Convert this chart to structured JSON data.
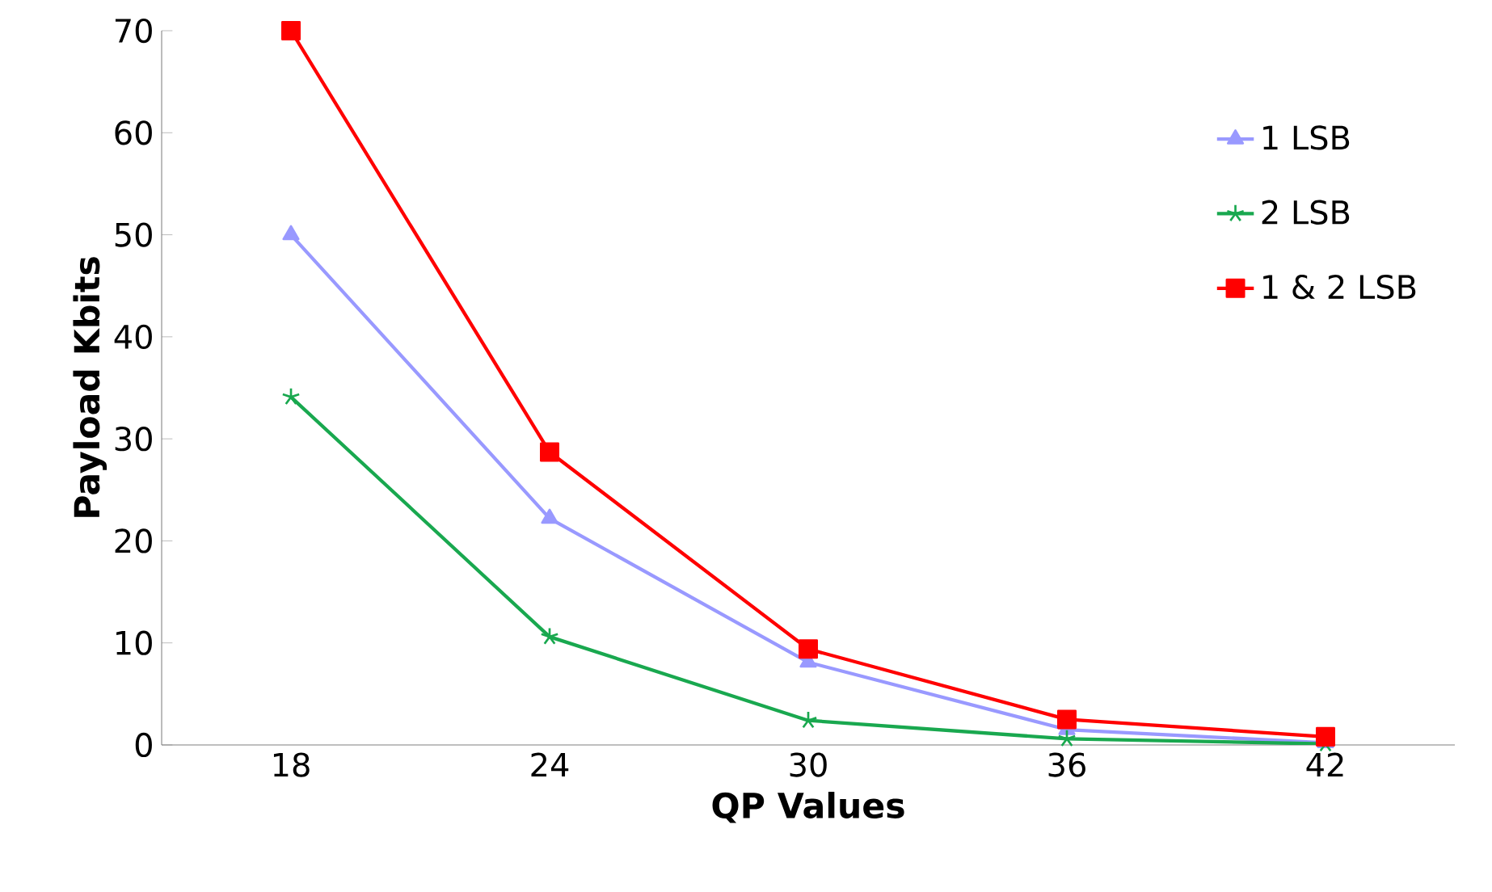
{
  "chart_data": {
    "type": "line",
    "xlabel": "QP Values",
    "ylabel": "Payload Kbits",
    "categories": [
      "18",
      "24",
      "30",
      "36",
      "42"
    ],
    "series": [
      {
        "name": "1 LSB",
        "color": "#9999ff",
        "marker": "triangle",
        "values": [
          50,
          22.2,
          8.1,
          1.5,
          0.2
        ]
      },
      {
        "name": "2 LSB",
        "color": "#19a84f",
        "marker": "cross",
        "values": [
          34.1,
          10.6,
          2.4,
          0.6,
          0.1
        ]
      },
      {
        "name": "1 & 2 LSB",
        "color": "#ff0000",
        "marker": "square",
        "values": [
          70,
          28.7,
          9.4,
          2.5,
          0.8
        ]
      }
    ],
    "ylim": [
      0,
      70
    ],
    "yticks": [
      0,
      10,
      20,
      30,
      40,
      50,
      60,
      70
    ],
    "legend": "right",
    "line_style": "solid"
  }
}
